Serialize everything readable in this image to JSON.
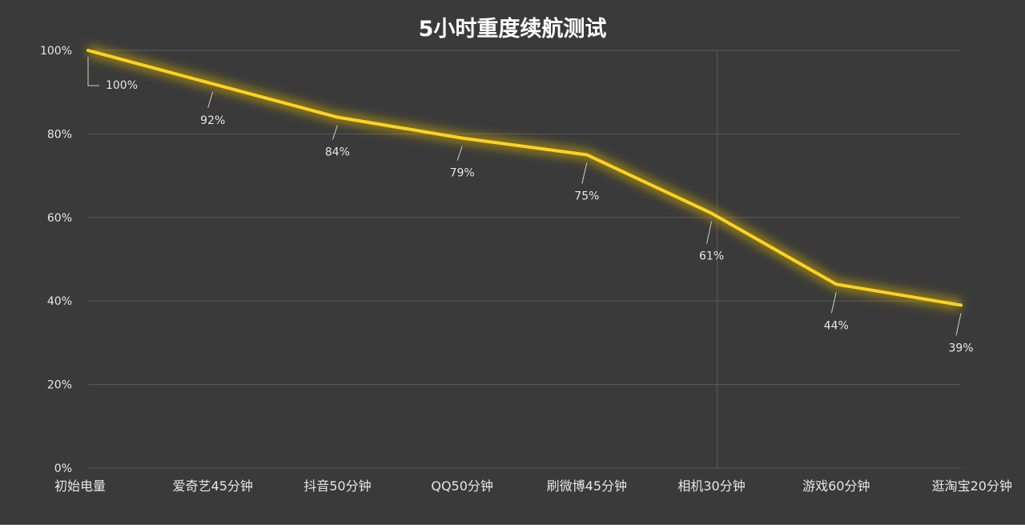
{
  "chart_data": {
    "type": "line",
    "title": "5小时重度续航测试",
    "xlabel": "",
    "ylabel": "",
    "categories": [
      "初始电量",
      "爱奇艺45分钟",
      "抖音50分钟",
      "QQ50分钟",
      "刷微博45分钟",
      "相机30分钟",
      "游戏60分钟",
      "逛淘宝20分钟"
    ],
    "series": [
      {
        "values": [
          100,
          92,
          84,
          79,
          75,
          61,
          44,
          39
        ]
      }
    ],
    "data_labels": [
      "100%",
      "92%",
      "84%",
      "79%",
      "75%",
      "61%",
      "44%",
      "39%"
    ],
    "ylim": [
      0,
      100
    ],
    "yticks": [
      0,
      20,
      40,
      60,
      80,
      100
    ],
    "ytick_labels": [
      "0%",
      "20%",
      "40%",
      "60%",
      "80%",
      "100%"
    ],
    "grid": true,
    "colors": {
      "background": "#3a3a3a",
      "line": "#ffd21f",
      "glow": "#d9b500",
      "grid": "#5a5a5a",
      "text": "#e6e6e6"
    }
  }
}
